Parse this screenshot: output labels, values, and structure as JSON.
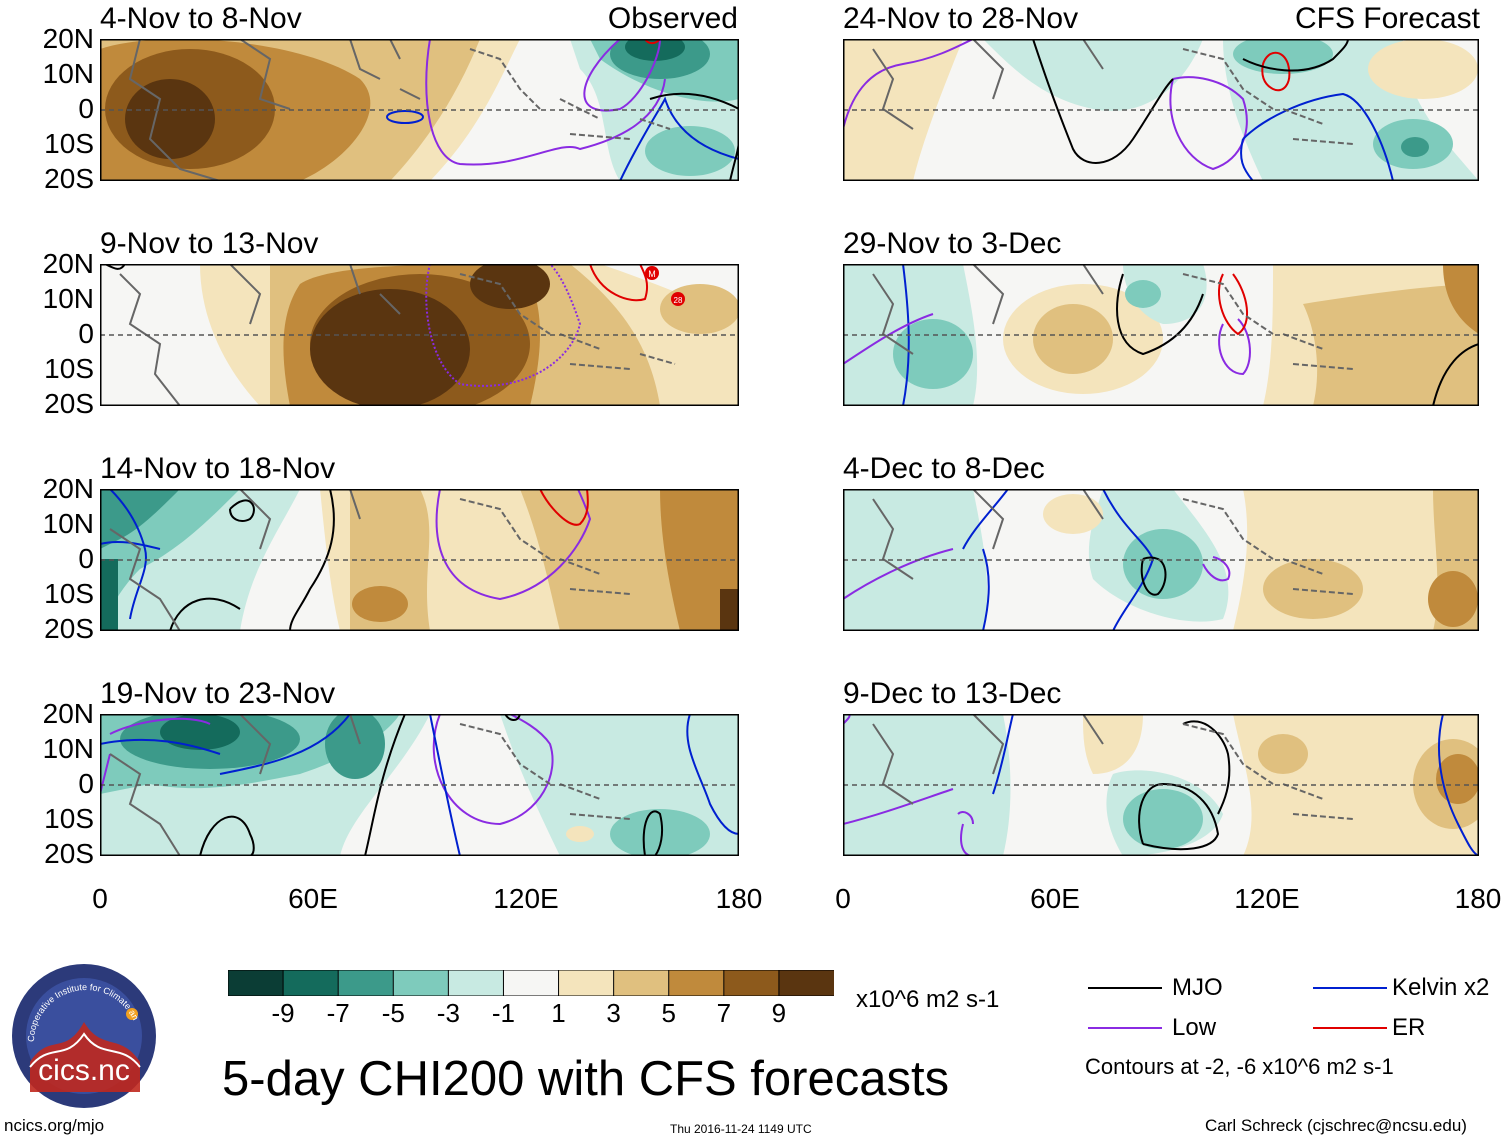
{
  "panels": [
    {
      "title": "4-Nov to 8-Nov",
      "tag": "Observed"
    },
    {
      "title": "9-Nov to 13-Nov"
    },
    {
      "title": "14-Nov to 18-Nov"
    },
    {
      "title": "19-Nov to 23-Nov"
    },
    {
      "title": "24-Nov to 28-Nov",
      "tag": "CFS Forecast"
    },
    {
      "title": "29-Nov to 3-Dec"
    },
    {
      "title": "4-Dec to 8-Dec"
    },
    {
      "title": "9-Dec to 13-Dec"
    }
  ],
  "lat_labels": [
    "20N",
    "10N",
    "0",
    "10S",
    "20S"
  ],
  "lon_labels": [
    "0",
    "60E",
    "120E",
    "180"
  ],
  "colorbar": {
    "labels": [
      "-9",
      "-7",
      "-5",
      "-3",
      "-1",
      "1",
      "3",
      "5",
      "7",
      "9"
    ],
    "colors": [
      "#0b3d35",
      "#146b5c",
      "#3c9a8a",
      "#7ecbbc",
      "#c8eae2",
      "#f6f6f4",
      "#f4e4bc",
      "#e0c07f",
      "#c08a3c",
      "#8d5a1c",
      "#5a3510"
    ],
    "units": "x10^6 m2 s-1"
  },
  "legend": {
    "items": [
      {
        "label": "MJO",
        "color": "#000000"
      },
      {
        "label": "Kelvin x2",
        "color": "#0020d0"
      },
      {
        "label": "Low",
        "color": "#8a2be2"
      },
      {
        "label": "ER",
        "color": "#e00000"
      }
    ],
    "contours_note": "Contours at -2, -6 x10^6 m2 s-1"
  },
  "logo": {
    "text": "cics.nc",
    "ring_text": "Cooperative Institute for Climate and Satellites"
  },
  "title": "5-day CHI200 with CFS forecasts",
  "footer": {
    "left": "ncics.org/mjo",
    "center": "Thu 2016-11-24 1149 UTC",
    "right": "Carl Schreck (cjschrec@ncsu.edu)"
  },
  "storm_markers": [
    "M",
    "28"
  ]
}
